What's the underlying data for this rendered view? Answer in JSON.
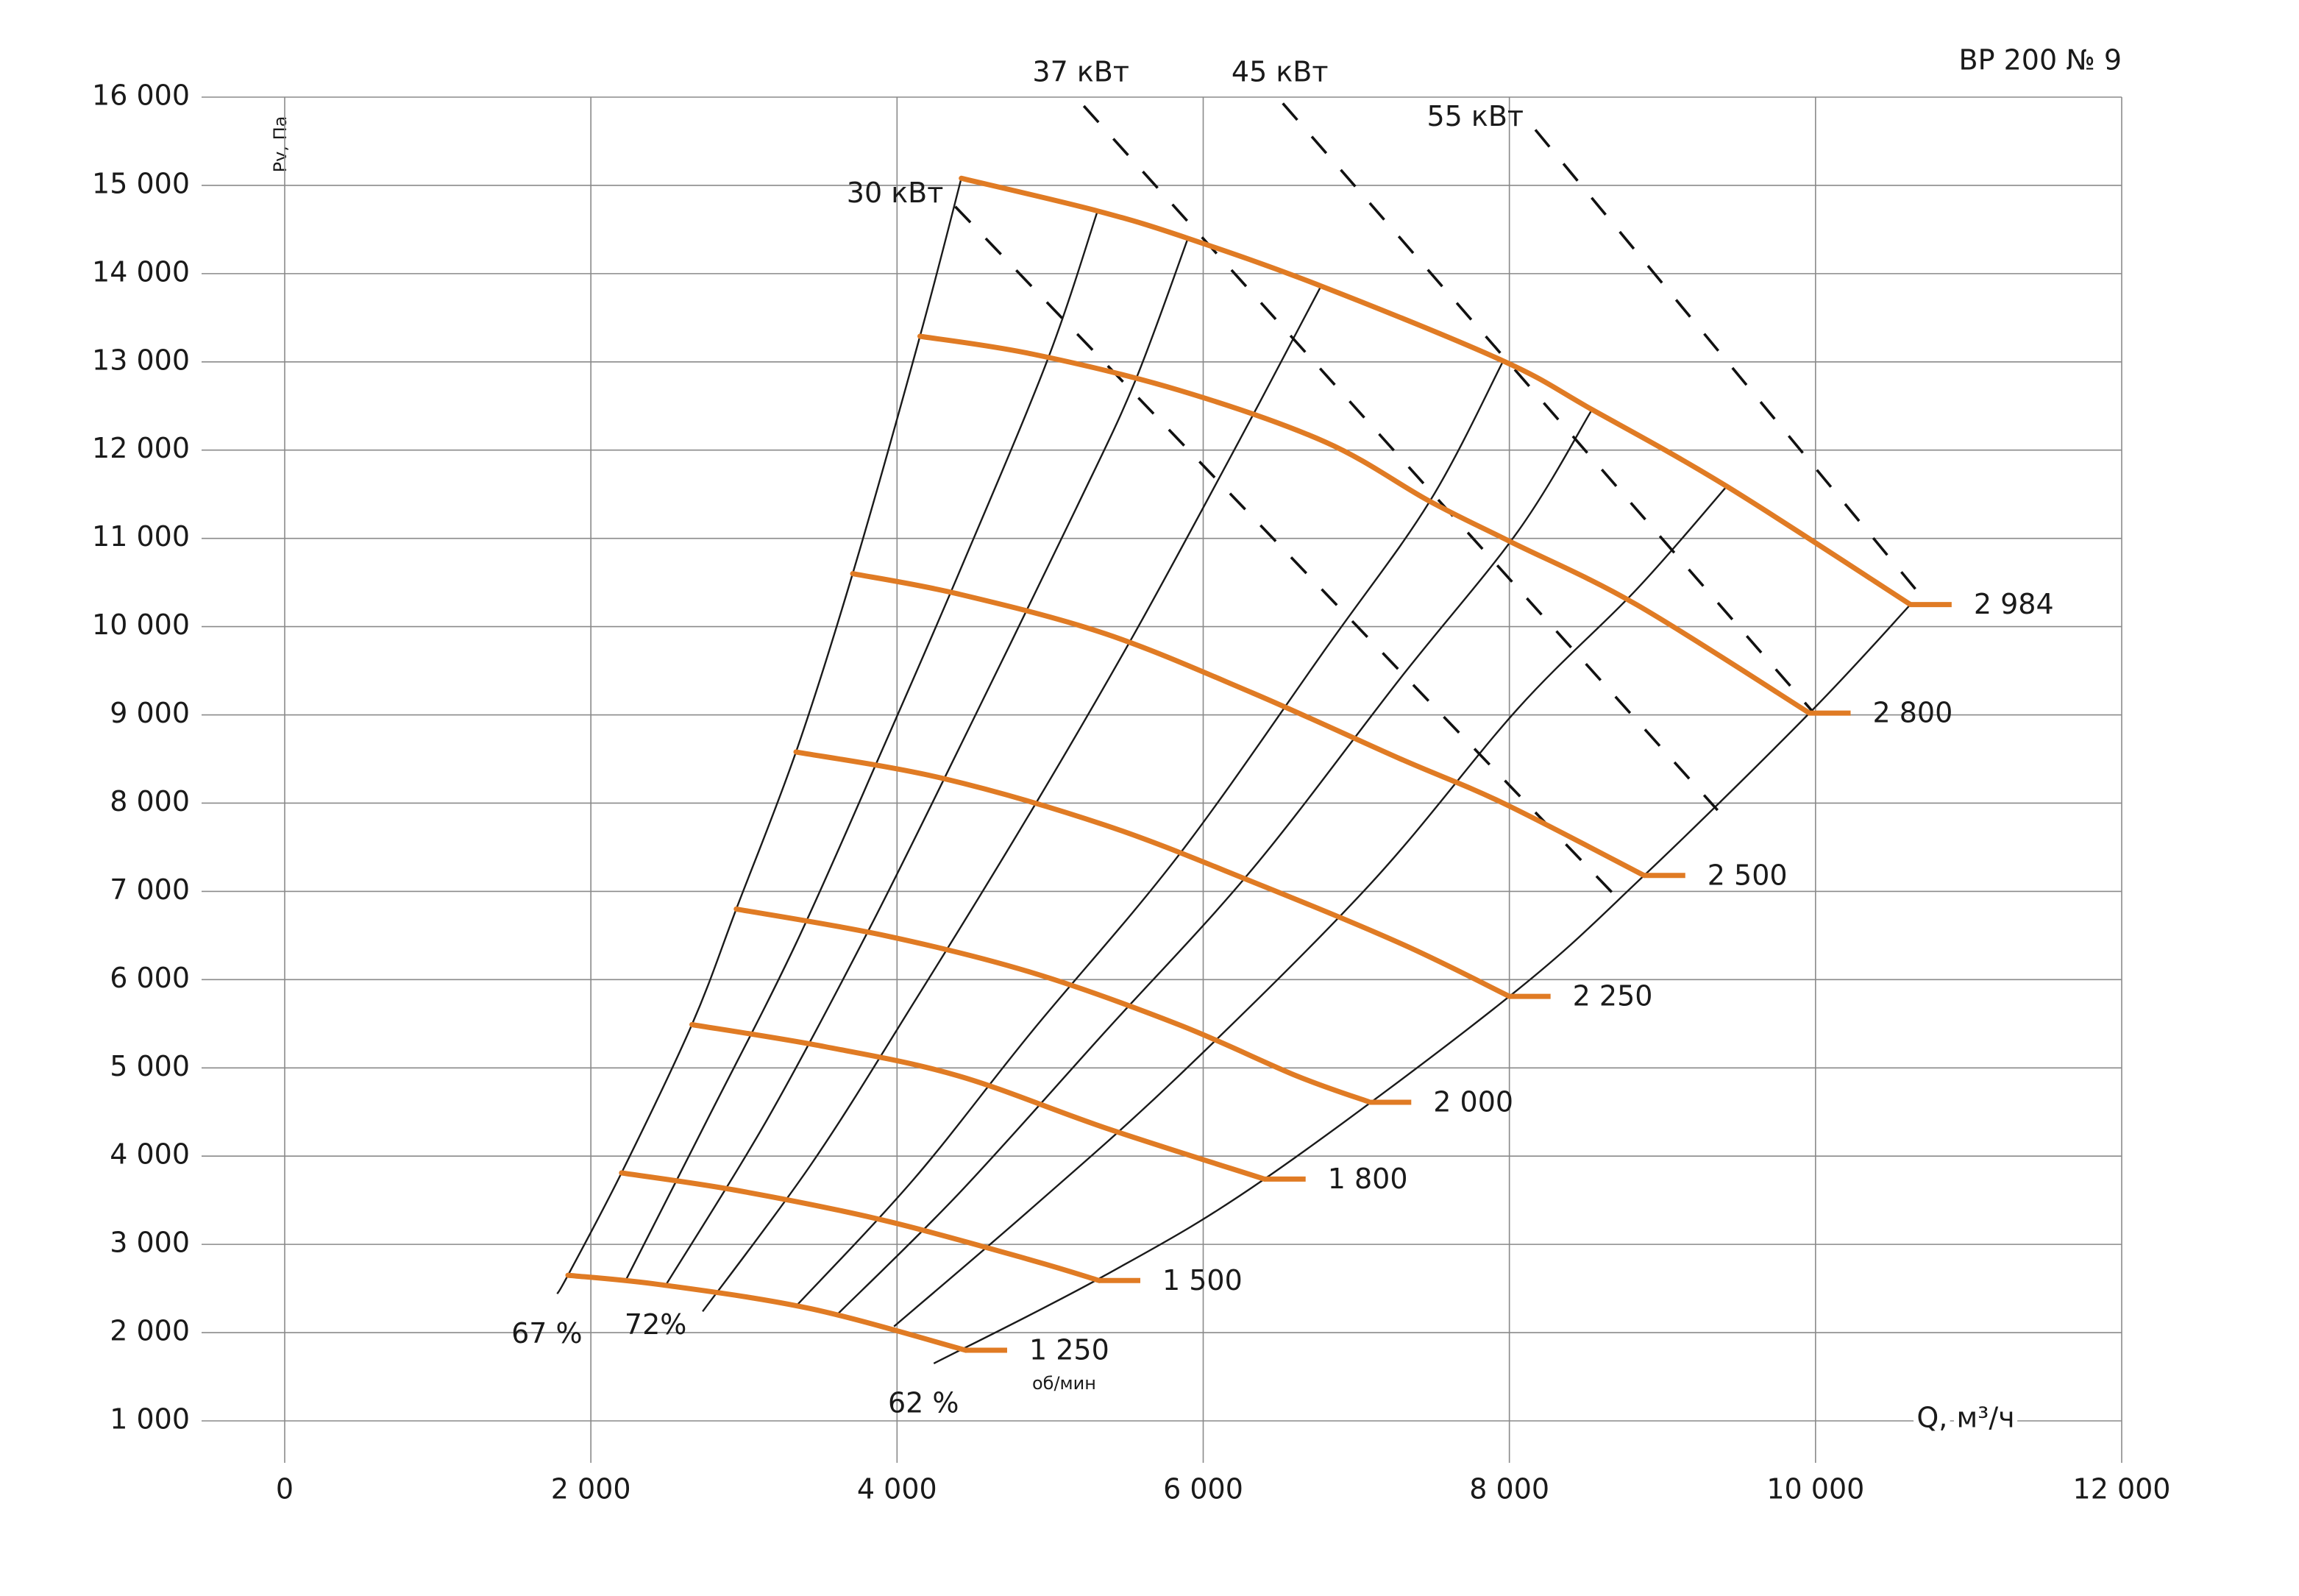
{
  "chart_data": {
    "type": "line",
    "title": "ВР  200 № 9",
    "x_label": "Q, м³/ч",
    "y_label": "Pv, Па",
    "rpm_unit": "об/мин",
    "xlim": [
      0,
      12000
    ],
    "ylim": [
      1000,
      16000
    ],
    "xticks": [
      0,
      {
        "value": 2000,
        "label": "2 000"
      },
      {
        "value": 4000,
        "label": "4 000"
      },
      {
        "value": 6000,
        "label": "6 000"
      },
      {
        "value": 8000,
        "label": "8 000"
      },
      {
        "value": 10000,
        "label": "10 000"
      },
      {
        "value": 12000,
        "label": "12 000"
      }
    ],
    "yticks": [
      {
        "value": 1000,
        "label": "1 000"
      },
      {
        "value": 2000,
        "label": "2 000"
      },
      {
        "value": 3000,
        "label": "3 000"
      },
      {
        "value": 4000,
        "label": "4 000"
      },
      {
        "value": 5000,
        "label": "5 000"
      },
      {
        "value": 6000,
        "label": "6 000"
      },
      {
        "value": 7000,
        "label": "7 000"
      },
      {
        "value": 8000,
        "label": "8 000"
      },
      {
        "value": 9000,
        "label": "9 000"
      },
      {
        "value": 10000,
        "label": "10 000"
      },
      {
        "value": 11000,
        "label": "11 000"
      },
      {
        "value": 12000,
        "label": "12 000"
      },
      {
        "value": 13000,
        "label": "13 000"
      },
      {
        "value": 14000,
        "label": "14 000"
      },
      {
        "value": 15000,
        "label": "15 000"
      },
      {
        "value": 16000,
        "label": "16 000"
      }
    ],
    "grid": true,
    "series": [
      {
        "name": "2 984",
        "color": "#e07b24",
        "x": [
          4420,
          5310,
          5900,
          6770,
          7960,
          8540,
          9420,
          10620
        ],
        "values": [
          15080,
          14710,
          14400,
          13860,
          13010,
          12460,
          11590,
          10250
        ]
      },
      {
        "name": "2 800",
        "color": "#e07b24",
        "x": [
          4150,
          4880,
          5840,
          6800,
          7480,
          8010,
          8830,
          9960
        ],
        "values": [
          13290,
          13090,
          12680,
          12090,
          11420,
          10960,
          10250,
          9020
        ]
      },
      {
        "name": "2 500",
        "color": "#e07b24",
        "x": [
          3710,
          4400,
          5360,
          6320,
          7290,
          7960,
          8880
        ],
        "values": [
          10600,
          10370,
          9920,
          9250,
          8500,
          8000,
          7180
        ]
      },
      {
        "name": "2 250",
        "color": "#e07b24",
        "x": [
          3340,
          4300,
          5360,
          6320,
          7290,
          8000
        ],
        "values": [
          8580,
          8280,
          7750,
          7110,
          6410,
          5810
        ]
      },
      {
        "name": "2 000",
        "color": "#e07b24",
        "x": [
          2950,
          3920,
          4880,
          5840,
          6610,
          7090
        ],
        "values": [
          6800,
          6500,
          6080,
          5490,
          4910,
          4610
        ]
      },
      {
        "name": "1 800",
        "color": "#e07b24",
        "x": [
          2660,
          3530,
          4400,
          5360,
          6400
        ],
        "values": [
          5490,
          5240,
          4910,
          4320,
          3740
        ]
      },
      {
        "name": "1 500",
        "color": "#e07b24",
        "x": [
          2200,
          2960,
          3920,
          4880,
          5320
        ],
        "values": [
          3810,
          3610,
          3270,
          2820,
          2590
        ]
      },
      {
        "name": "1 250",
        "color": "#e07b24",
        "x": [
          1850,
          2470,
          3440,
          4450
        ],
        "values": [
          2650,
          2540,
          2270,
          1800
        ]
      }
    ],
    "efficiency_curves": [
      {
        "label": "67 %",
        "color": "#1a1a1a",
        "x": [
          1780,
          1850,
          2200,
          2660,
          2950,
          3340,
          3710,
          4150,
          4420
        ],
        "values": [
          2440,
          2650,
          3810,
          5490,
          6800,
          8580,
          10600,
          13290,
          15080
        ]
      },
      {
        "color": "#1a1a1a",
        "x": [
          2230,
          2760,
          3340,
          3920,
          4400,
          4980,
          5310
        ],
        "values": [
          2600,
          4410,
          6410,
          8670,
          10590,
          13010,
          14710
        ]
      },
      {
        "label": "72%",
        "color": "#1a1a1a",
        "x": [
          2490,
          3150,
          3820,
          4490,
          5170,
          5550,
          5900
        ],
        "values": [
          2540,
          4410,
          6580,
          8920,
          11340,
          12760,
          14400
        ]
      },
      {
        "color": "#1a1a1a",
        "x": [
          2730,
          3440,
          4110,
          4880,
          5550,
          6230,
          6770
        ],
        "values": [
          2240,
          3910,
          5740,
          7920,
          9920,
          12090,
          13860
        ]
      },
      {
        "color": "#1a1a1a",
        "x": [
          3340,
          4110,
          4880,
          5840,
          6800,
          7480,
          7960
        ],
        "values": [
          2300,
          3740,
          5410,
          7410,
          9750,
          11420,
          13010
        ]
      },
      {
        "color": "#1a1a1a",
        "x": [
          3600,
          4400,
          5360,
          6320,
          7290,
          8060,
          8540
        ],
        "values": [
          2190,
          3570,
          5410,
          7250,
          9420,
          11090,
          12460
        ]
      },
      {
        "color": "#1a1a1a",
        "x": [
          3980,
          4880,
          5840,
          7090,
          8060,
          8830,
          9420
        ],
        "values": [
          2070,
          3410,
          4910,
          7080,
          9080,
          10420,
          11590
        ]
      },
      {
        "label": "62 %",
        "color": "#1a1a1a",
        "x": [
          4240,
          5360,
          6400,
          8000,
          8880,
          9960,
          10620
        ],
        "values": [
          1650,
          2650,
          3740,
          5810,
          7180,
          9020,
          10250
        ]
      }
    ],
    "power_lines": [
      {
        "name": "30 кВт",
        "color": "#111111",
        "x": [
          4380,
          8730
        ],
        "values": [
          14760,
          6880
        ]
      },
      {
        "name": "37 кВт",
        "color": "#111111",
        "x": [
          5220,
          9360
        ],
        "values": [
          15900,
          7920
        ]
      },
      {
        "name": "45 кВт",
        "color": "#111111",
        "x": [
          6520,
          10000
        ],
        "values": [
          15930,
          9000
        ]
      },
      {
        "name": "55 кВт",
        "color": "#111111",
        "x": [
          8170,
          10670
        ],
        "values": [
          15630,
          10390
        ]
      }
    ]
  }
}
